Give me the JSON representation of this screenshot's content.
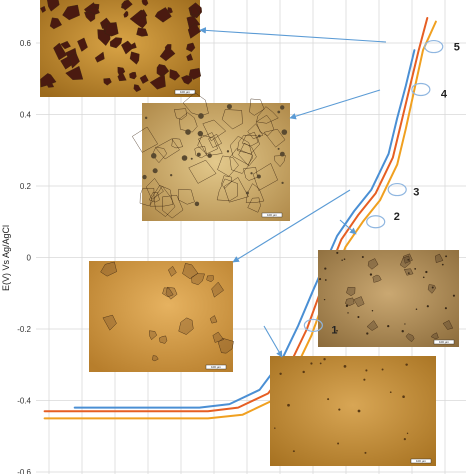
{
  "chart_data": {
    "type": "line",
    "title": "",
    "xlabel": "",
    "ylabel": "E(V) Vs Ag/AgCl",
    "ylim": [
      -0.6,
      0.7
    ],
    "yticks": [
      {
        "value": 0.6,
        "label": "0.6"
      },
      {
        "value": 0.4,
        "label": "0.4"
      },
      {
        "value": 0.2,
        "label": "0.2"
      },
      {
        "value": 0,
        "label": "0"
      },
      {
        "value": -0.2,
        "label": "-0.2"
      },
      {
        "value": -0.4,
        "label": "-0.4"
      },
      {
        "value": -0.6,
        "label": "-0.6"
      }
    ],
    "grid": true,
    "legend": "none",
    "series": [
      {
        "color": "#f0a020",
        "points": [
          [
            0.02,
            -0.45
          ],
          [
            0.22,
            -0.45
          ],
          [
            0.4,
            -0.45
          ],
          [
            0.48,
            -0.44
          ],
          [
            0.55,
            -0.4
          ],
          [
            0.6,
            -0.32
          ],
          [
            0.64,
            -0.22
          ],
          [
            0.67,
            -0.12
          ],
          [
            0.72,
            0.03
          ],
          [
            0.76,
            0.1
          ],
          [
            0.8,
            0.16
          ],
          [
            0.84,
            0.26
          ],
          [
            0.86,
            0.36
          ],
          [
            0.88,
            0.47
          ],
          [
            0.9,
            0.58
          ],
          [
            0.93,
            0.66
          ]
        ]
      },
      {
        "color": "#e65e23",
        "points": [
          [
            0.02,
            -0.43
          ],
          [
            0.22,
            -0.43
          ],
          [
            0.4,
            -0.43
          ],
          [
            0.47,
            -0.42
          ],
          [
            0.54,
            -0.38
          ],
          [
            0.59,
            -0.3
          ],
          [
            0.63,
            -0.2
          ],
          [
            0.66,
            -0.1
          ],
          [
            0.71,
            0.05
          ],
          [
            0.75,
            0.12
          ],
          [
            0.79,
            0.18
          ],
          [
            0.83,
            0.28
          ],
          [
            0.85,
            0.38
          ],
          [
            0.87,
            0.48
          ],
          [
            0.89,
            0.58
          ],
          [
            0.91,
            0.67
          ]
        ]
      },
      {
        "color": "#4a8fd4",
        "points": [
          [
            0.09,
            -0.42
          ],
          [
            0.22,
            -0.42
          ],
          [
            0.38,
            -0.42
          ],
          [
            0.45,
            -0.41
          ],
          [
            0.52,
            -0.37
          ],
          [
            0.57,
            -0.29
          ],
          [
            0.61,
            -0.19
          ],
          [
            0.645,
            -0.09
          ],
          [
            0.7,
            0.06
          ],
          [
            0.74,
            0.13
          ],
          [
            0.78,
            0.19
          ],
          [
            0.82,
            0.29
          ],
          [
            0.84,
            0.39
          ],
          [
            0.86,
            0.48
          ],
          [
            0.88,
            0.58
          ]
        ]
      }
    ],
    "annotations": [
      {
        "label": "1",
        "x": 0.645,
        "y": -0.19
      },
      {
        "label": "2",
        "x": 0.79,
        "y": 0.1
      },
      {
        "label": "3",
        "x": 0.84,
        "y": 0.19
      },
      {
        "label": "4",
        "x": 0.895,
        "y": 0.47
      },
      {
        "label": "5",
        "x": 0.925,
        "y": 0.59
      }
    ]
  },
  "micrographs": [
    {
      "id": "5",
      "tone": "dark",
      "scale_text": "100 µm"
    },
    {
      "id": "4",
      "tone": "grain",
      "scale_text": "100 µm"
    },
    {
      "id": "3",
      "tone": "pits",
      "scale_text": "100 µm"
    },
    {
      "id": "2",
      "tone": "pits-small",
      "scale_text": "100 µm"
    },
    {
      "id": "1",
      "tone": "plain",
      "scale_text": "100 µm"
    }
  ],
  "colors": {
    "arrow": "#5b9bd5",
    "grid": "#d9d9d9",
    "marker": "#8fb6e0"
  }
}
